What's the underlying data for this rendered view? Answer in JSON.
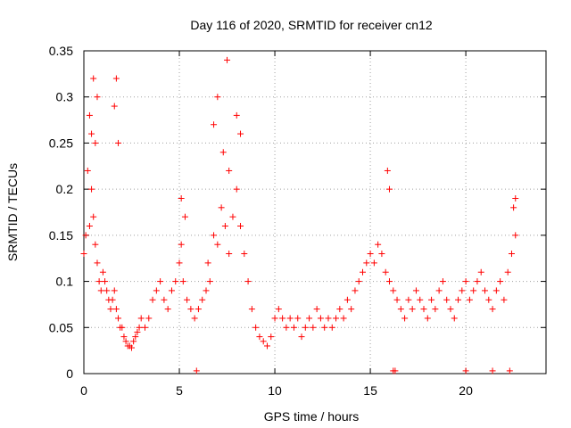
{
  "chart_data": {
    "type": "scatter",
    "title": "Day 116 of 2020, SRMTID for receiver cn12",
    "xlabel": "GPS time / hours",
    "ylabel": "SRMTID / TECUs",
    "xlim": [
      0,
      24.2
    ],
    "ylim": [
      0,
      0.35
    ],
    "x_ticks": [
      0,
      5,
      10,
      15,
      20
    ],
    "y_ticks": [
      0,
      0.05,
      0.1,
      0.15,
      0.2,
      0.25,
      0.3,
      0.35
    ],
    "x_tick_labels": [
      "0",
      "5",
      "10",
      "15",
      "20"
    ],
    "y_tick_labels": [
      "0",
      "0.05",
      "0.1",
      "0.15",
      "0.2",
      "0.25",
      "0.3",
      "0.35"
    ],
    "grid": true,
    "marker": "+",
    "color": "#ff0000",
    "series": [
      {
        "name": "SRMTID",
        "x": [
          0.0,
          0.1,
          0.2,
          0.3,
          0.4,
          0.5,
          0.6,
          0.7,
          0.8,
          0.9,
          1.0,
          1.1,
          1.2,
          1.3,
          1.4,
          1.5,
          1.6,
          1.7,
          1.8,
          1.9,
          2.0,
          2.1,
          2.2,
          2.3,
          2.4,
          2.5,
          2.6,
          2.7,
          2.8,
          2.9,
          3.0,
          3.2,
          3.4,
          3.6,
          3.8,
          4.0,
          4.2,
          4.4,
          4.6,
          4.8,
          5.0,
          5.1,
          5.2,
          5.4,
          5.6,
          5.8,
          6.0,
          6.2,
          6.4,
          6.5,
          6.6,
          6.8,
          7.0,
          7.2,
          7.4,
          7.6,
          7.8,
          8.0,
          8.2,
          8.4,
          8.6,
          8.8,
          9.0,
          9.2,
          9.4,
          9.6,
          9.8,
          10.0,
          10.2,
          10.4,
          10.6,
          10.8,
          11.0,
          11.2,
          11.4,
          11.6,
          11.8,
          12.0,
          12.2,
          12.4,
          12.6,
          12.8,
          13.0,
          13.2,
          13.4,
          13.6,
          13.8,
          14.0,
          14.2,
          14.4,
          14.6,
          14.8,
          15.0,
          15.2,
          15.4,
          15.6,
          15.8,
          16.0,
          16.2,
          16.4,
          16.6,
          16.8,
          17.0,
          17.2,
          17.4,
          17.6,
          17.8,
          18.0,
          18.2,
          18.4,
          18.6,
          18.8,
          19.0,
          19.2,
          19.4,
          19.6,
          19.8,
          20.0,
          20.2,
          20.4,
          20.6,
          20.8,
          21.0,
          21.2,
          21.4,
          21.6,
          21.8,
          22.0,
          22.2,
          22.4,
          22.6,
          0.3,
          0.5,
          0.7,
          1.7,
          7.0,
          7.5,
          8.0,
          8.2,
          0.4,
          0.6,
          1.6,
          1.8,
          6.8,
          7.3,
          7.6,
          15.9,
          16.0,
          5.1,
          5.3,
          22.5,
          22.6,
          16.2,
          16.3,
          20.0,
          21.4,
          5.9,
          22.3
        ],
        "y": [
          0.13,
          0.15,
          0.22,
          0.16,
          0.2,
          0.17,
          0.14,
          0.12,
          0.1,
          0.09,
          0.11,
          0.1,
          0.09,
          0.08,
          0.07,
          0.08,
          0.09,
          0.07,
          0.06,
          0.05,
          0.05,
          0.04,
          0.035,
          0.03,
          0.03,
          0.028,
          0.035,
          0.04,
          0.045,
          0.05,
          0.06,
          0.05,
          0.06,
          0.08,
          0.09,
          0.1,
          0.08,
          0.07,
          0.09,
          0.1,
          0.12,
          0.14,
          0.1,
          0.08,
          0.07,
          0.06,
          0.07,
          0.08,
          0.09,
          0.12,
          0.1,
          0.15,
          0.14,
          0.18,
          0.16,
          0.13,
          0.17,
          0.2,
          0.16,
          0.13,
          0.1,
          0.07,
          0.05,
          0.04,
          0.035,
          0.03,
          0.04,
          0.06,
          0.07,
          0.06,
          0.05,
          0.06,
          0.05,
          0.06,
          0.04,
          0.05,
          0.06,
          0.05,
          0.07,
          0.06,
          0.05,
          0.06,
          0.05,
          0.06,
          0.07,
          0.06,
          0.08,
          0.07,
          0.09,
          0.1,
          0.11,
          0.12,
          0.13,
          0.12,
          0.14,
          0.13,
          0.11,
          0.1,
          0.09,
          0.08,
          0.07,
          0.06,
          0.08,
          0.07,
          0.09,
          0.08,
          0.07,
          0.06,
          0.08,
          0.07,
          0.09,
          0.1,
          0.08,
          0.07,
          0.06,
          0.08,
          0.09,
          0.1,
          0.08,
          0.09,
          0.1,
          0.11,
          0.09,
          0.08,
          0.07,
          0.09,
          0.1,
          0.08,
          0.11,
          0.13,
          0.15,
          0.28,
          0.32,
          0.3,
          0.32,
          0.3,
          0.34,
          0.28,
          0.26,
          0.26,
          0.25,
          0.29,
          0.25,
          0.27,
          0.24,
          0.22,
          0.22,
          0.2,
          0.19,
          0.17,
          0.18,
          0.19,
          0.003,
          0.003,
          0.003,
          0.003,
          0.003,
          0.003
        ]
      }
    ]
  }
}
